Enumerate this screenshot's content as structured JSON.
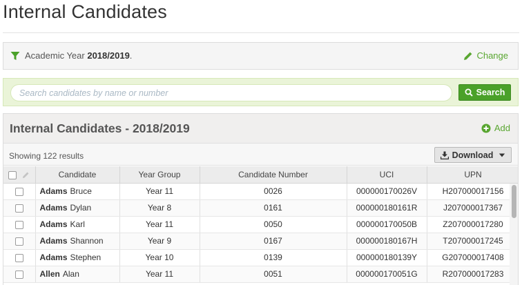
{
  "page": {
    "title": "Internal Candidates"
  },
  "filter": {
    "prefix": "Academic Year ",
    "year": "2018/2019",
    "suffix": ".",
    "change_label": "Change"
  },
  "search": {
    "placeholder": "Search candidates by name or number",
    "value": "",
    "button_label": "Search"
  },
  "panel": {
    "title": "Internal Candidates - 2018/2019",
    "add_label": "Add",
    "results_text": "Showing 122 results",
    "download_label": "Download"
  },
  "table": {
    "columns": [
      "Candidate",
      "Year Group",
      "Candidate Number",
      "UCI",
      "UPN"
    ],
    "rows": [
      {
        "surname": "Adams",
        "forename": "Bruce",
        "year_group": "Year 11",
        "candidate_number": "0026",
        "uci": "000000170026V",
        "upn": "H207000017156"
      },
      {
        "surname": "Adams",
        "forename": "Dylan",
        "year_group": "Year 8",
        "candidate_number": "0161",
        "uci": "000000180161R",
        "upn": "J207000017367"
      },
      {
        "surname": "Adams",
        "forename": "Karl",
        "year_group": "Year 11",
        "candidate_number": "0050",
        "uci": "000000170050B",
        "upn": "Z207000017280"
      },
      {
        "surname": "Adams",
        "forename": "Shannon",
        "year_group": "Year 9",
        "candidate_number": "0167",
        "uci": "000000180167H",
        "upn": "T207000017245"
      },
      {
        "surname": "Adams",
        "forename": "Stephen",
        "year_group": "Year 10",
        "candidate_number": "0139",
        "uci": "000000180139Y",
        "upn": "G207000017408"
      },
      {
        "surname": "Allen",
        "forename": "Alan",
        "year_group": "Year 11",
        "candidate_number": "0051",
        "uci": "000000170051G",
        "upn": "R207000017283"
      }
    ]
  },
  "icons": {
    "filter": "funnel-icon",
    "change": "pencil-icon",
    "search": "magnifier-icon",
    "add": "plus-circle-icon",
    "download": "download-icon",
    "edit_column": "pencil-icon"
  },
  "colors": {
    "accent_green": "#4aa129",
    "link_green": "#59a630",
    "search_bar_bg": "#eaf4d8",
    "panel_header_bg": "#f0efee"
  }
}
